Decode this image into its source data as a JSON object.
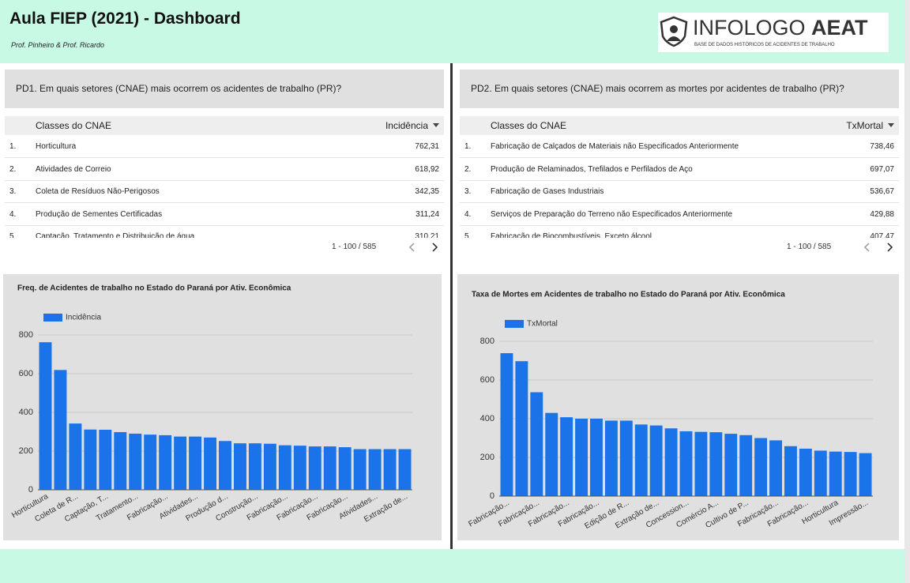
{
  "header": {
    "title": "Aula FIEP (2021) - Dashboard",
    "subtitle": "Prof. Pinheiro & Prof. Ricardo",
    "logo": "INFOLOGO",
    "logo_bold": "AEAT",
    "logo_tagline": "BASE DE DADOS HISTÓRICOS DE ACIDENTES DE TRABALHO"
  },
  "tables": [
    {
      "title": "PD1. Em quais setores (CNAE) mais ocorrem os acidentes de trabalho (PR)?",
      "columns": [
        "Classes do CNAE",
        "Incidência"
      ],
      "rows": [
        [
          "1.",
          "Horticultura",
          "762,31"
        ],
        [
          "2.",
          "Atividades de Correio",
          "618,92"
        ],
        [
          "3.",
          "Coleta de Resíduos Não-Perigosos",
          "342,35"
        ],
        [
          "4.",
          "Produção de Sementes Certificadas",
          "311,24"
        ],
        [
          "5.",
          "Captação, Tratamento e Distribuição de água",
          "310,21"
        ]
      ],
      "pagination": "1 - 100 / 585"
    },
    {
      "title": "PD2. Em quais setores (CNAE) mais ocorrem as mortes por acidentes de trabalho (PR)?",
      "columns": [
        "Classes do CNAE",
        "TxMortal"
      ],
      "rows": [
        [
          "1.",
          "Fabricação de Calçados de Materiais não Especificados Anteriormente",
          "738,46"
        ],
        [
          "2.",
          "Produção de Relaminados, Trefilados e Perfilados de Aço",
          "697,07"
        ],
        [
          "3.",
          "Fabricação de Gases Industriais",
          "536,67"
        ],
        [
          "4.",
          "Serviços de Preparação do Terreno não Especificados Anteriormente",
          "429,88"
        ],
        [
          "5.",
          "Fabricação de Biocombustíveis, Exceto álcool",
          "407,47"
        ]
      ],
      "pagination": "1 - 100 / 585"
    }
  ],
  "chart_data": [
    {
      "type": "bar",
      "title": "Freq. de Acidentes de trabalho no Estado do Paraná por Ativ. Econômica",
      "categories": [
        "Horticultura",
        null,
        "Coleta de R...",
        null,
        "Captação, T...",
        null,
        "Tratamento...",
        null,
        "Fabricação...",
        null,
        "Atividades...",
        null,
        "Produção d...",
        null,
        "Construção...",
        null,
        "Fabricação...",
        null,
        "Fabricação...",
        null,
        "Fabricação...",
        null,
        "Atividades...",
        null,
        "Extração de..."
      ],
      "series": [
        {
          "name": "Incidência",
          "color": "#1a73e8",
          "values": [
            762.31,
            618.92,
            342.35,
            311.24,
            310.21,
            298,
            290,
            285,
            282,
            275,
            275,
            270,
            252,
            240,
            240,
            238,
            230,
            228,
            224,
            224,
            220,
            210,
            210,
            210,
            210
          ]
        }
      ],
      "ylim": [
        0,
        800
      ],
      "yticks": [
        0,
        200,
        400,
        600,
        800
      ],
      "grid": true,
      "legend": "top-left"
    },
    {
      "type": "bar",
      "title": "Taxa de Mortes em Acidentes de  trabalho no Estado do Paraná por Ativ. Econômica",
      "categories": [
        "Fabricação...",
        null,
        "Fabricação...",
        null,
        "Fabricação...",
        null,
        "Fabricação...",
        null,
        "Edição de R...",
        null,
        "Extração de...",
        null,
        "Concession...",
        null,
        "Comércio A...",
        null,
        "Cultivo de P...",
        null,
        "Fabricação...",
        null,
        "Fabricação...",
        null,
        "Horticultura",
        null,
        "Impressão..."
      ],
      "series": [
        {
          "name": "TxMortal",
          "color": "#1a73e8",
          "values": [
            738.46,
            697.07,
            536.67,
            429.88,
            407.47,
            400,
            400,
            390,
            390,
            370,
            365,
            350,
            335,
            332,
            330,
            322,
            315,
            300,
            288,
            258,
            245,
            235,
            230,
            228,
            222
          ]
        }
      ],
      "ylim": [
        0,
        800
      ],
      "yticks": [
        0,
        200,
        400,
        600,
        800
      ],
      "grid": true,
      "legend": "top-left"
    }
  ]
}
